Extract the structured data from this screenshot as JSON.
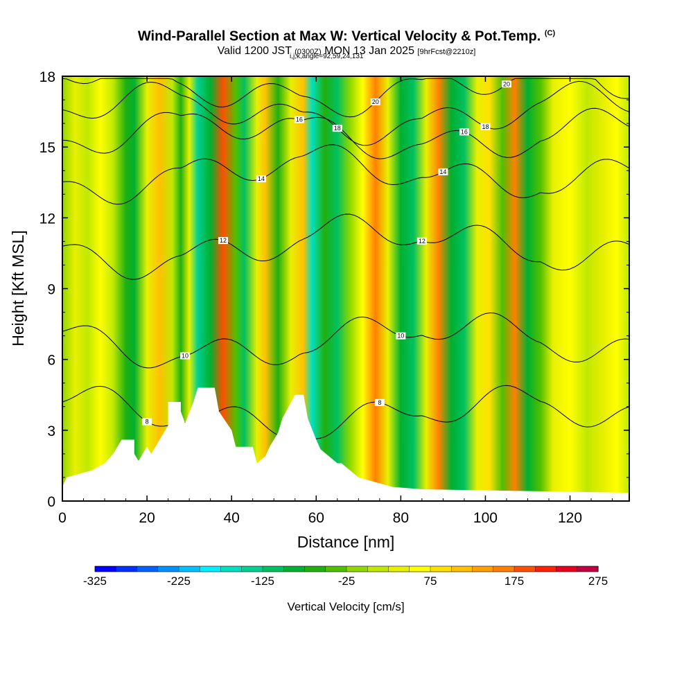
{
  "header": {
    "title": "Wind-Parallel Section at Max W: Vertical Velocity & Pot.Temp.",
    "title_tag": "(C)",
    "valid_prefix": "Valid 1200 JST",
    "valid_utc": "(0300Z)",
    "valid_date": "MON 13 Jan 2025",
    "forecast_note": "[9hrFcst@2210z]",
    "ijk_line": "i,j,k,angle=92,59,24,131"
  },
  "chart_data": {
    "type": "heatmap",
    "title": "Wind-Parallel Section at Max W: Vertical Velocity & Pot.Temp.",
    "xlabel": "Distance [nm]",
    "ylabel": "Height [Kft MSL]",
    "xlim": [
      0,
      134
    ],
    "ylim": [
      0,
      18
    ],
    "x_ticks": [
      0,
      20,
      40,
      60,
      80,
      100,
      120
    ],
    "y_ticks": [
      0,
      3,
      6,
      9,
      12,
      15,
      18
    ],
    "colorbar": {
      "title": "Vertical Velocity [cm/s]",
      "min": -325,
      "max": 275,
      "step": 25,
      "tick_values": [
        -325,
        -225,
        -125,
        -25,
        75,
        175,
        275
      ],
      "tick_labels": [
        "-325",
        "-225",
        "-125",
        "-25",
        "75",
        "175",
        "275"
      ],
      "colors": [
        "#0000ff",
        "#0030ff",
        "#0060ff",
        "#0090ff",
        "#00c0ff",
        "#00f0ff",
        "#00e0c0",
        "#00d090",
        "#00c060",
        "#00b030",
        "#20b010",
        "#50c000",
        "#90d800",
        "#c0e800",
        "#e8f000",
        "#ffff00",
        "#ffe000",
        "#ffc000",
        "#ffa000",
        "#ff8000",
        "#ff5000",
        "#ff2000",
        "#e80020",
        "#c00040",
        "#a00060",
        "#6a0080"
      ]
    },
    "vertical_velocity_bands": [
      {
        "x": 0,
        "w": -10
      },
      {
        "x": 3,
        "w": 40
      },
      {
        "x": 6,
        "w": 10
      },
      {
        "x": 9,
        "w": 50
      },
      {
        "x": 12,
        "w": 0
      },
      {
        "x": 15,
        "w": -60
      },
      {
        "x": 17,
        "w": -100
      },
      {
        "x": 20,
        "w": 30
      },
      {
        "x": 23,
        "w": 100
      },
      {
        "x": 26,
        "w": 20
      },
      {
        "x": 28,
        "w": -60
      },
      {
        "x": 30,
        "w": 40
      },
      {
        "x": 32,
        "w": -150
      },
      {
        "x": 35,
        "w": -100
      },
      {
        "x": 38,
        "w": 180
      },
      {
        "x": 41,
        "w": -40
      },
      {
        "x": 43,
        "w": -110
      },
      {
        "x": 46,
        "w": 40
      },
      {
        "x": 48,
        "w": 110
      },
      {
        "x": 51,
        "w": -60
      },
      {
        "x": 54,
        "w": 40
      },
      {
        "x": 57,
        "w": 120
      },
      {
        "x": 59,
        "w": -170
      },
      {
        "x": 62,
        "w": -60
      },
      {
        "x": 65,
        "w": -110
      },
      {
        "x": 68,
        "w": -20
      },
      {
        "x": 71,
        "w": 60
      },
      {
        "x": 74,
        "w": 170
      },
      {
        "x": 77,
        "w": 40
      },
      {
        "x": 80,
        "w": -80
      },
      {
        "x": 83,
        "w": -110
      },
      {
        "x": 86,
        "w": 40
      },
      {
        "x": 89,
        "w": 170
      },
      {
        "x": 92,
        "w": -80
      },
      {
        "x": 95,
        "w": -110
      },
      {
        "x": 98,
        "w": 40
      },
      {
        "x": 101,
        "w": 90
      },
      {
        "x": 104,
        "w": -50
      },
      {
        "x": 107,
        "w": 150
      },
      {
        "x": 110,
        "w": -100
      },
      {
        "x": 113,
        "w": -40
      },
      {
        "x": 116,
        "w": 30
      },
      {
        "x": 120,
        "w": 60
      },
      {
        "x": 124,
        "w": 10
      },
      {
        "x": 128,
        "w": 40
      },
      {
        "x": 131,
        "w": 70
      },
      {
        "x": 134,
        "w": 20
      }
    ],
    "terrain_profile": [
      [
        0,
        0.6
      ],
      [
        1,
        1.0
      ],
      [
        7,
        1.3
      ],
      [
        10,
        1.6
      ],
      [
        12,
        2.0
      ],
      [
        13,
        2.3
      ],
      [
        14,
        2.6
      ],
      [
        17,
        2.6
      ],
      [
        17,
        2.0
      ],
      [
        18,
        1.7
      ],
      [
        19,
        2.0
      ],
      [
        20,
        2.3
      ],
      [
        21,
        2.0
      ],
      [
        23,
        2.6
      ],
      [
        25,
        3.2
      ],
      [
        25,
        4.2
      ],
      [
        28,
        4.2
      ],
      [
        28,
        3.8
      ],
      [
        29,
        3.3
      ],
      [
        31,
        4.2
      ],
      [
        32,
        4.8
      ],
      [
        36,
        4.8
      ],
      [
        37,
        3.8
      ],
      [
        40,
        3.0
      ],
      [
        41,
        2.3
      ],
      [
        45,
        2.3
      ],
      [
        46,
        1.6
      ],
      [
        48,
        1.9
      ],
      [
        49,
        2.3
      ],
      [
        51,
        2.9
      ],
      [
        52,
        3.5
      ],
      [
        55,
        4.5
      ],
      [
        57,
        4.5
      ],
      [
        58,
        3.5
      ],
      [
        60,
        2.6
      ],
      [
        61,
        2.2
      ],
      [
        65,
        1.6
      ],
      [
        66,
        1.6
      ],
      [
        70,
        1.0
      ],
      [
        74,
        0.8
      ],
      [
        78,
        0.6
      ],
      [
        85,
        0.5
      ],
      [
        134,
        0.35
      ]
    ],
    "potential_temperature_contours": [
      {
        "level": "8",
        "base": 3.6
      },
      {
        "level": "10",
        "base": 6.7
      },
      {
        "level": "12",
        "base": 10.8
      },
      {
        "level": "14",
        "base": 13.9
      },
      {
        "level": "16",
        "base": 15.6
      },
      {
        "level": "18",
        "base": 16.5
      },
      {
        "level": "20",
        "base": 17.6
      }
    ]
  }
}
